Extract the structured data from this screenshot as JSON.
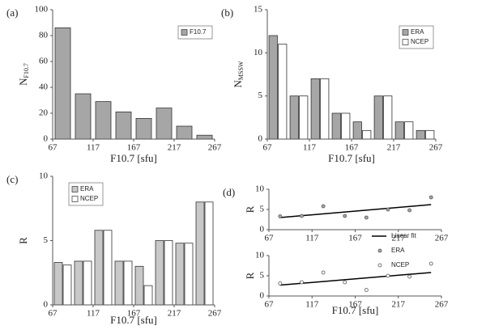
{
  "chart_data": [
    {
      "type": "histogram",
      "panel_label": "(a)",
      "ylabel": "N",
      "ylabel_sub": "F10.7",
      "xlabel": "F10.7 [sfu]",
      "bins": [
        67,
        92,
        117,
        142,
        167,
        192,
        217,
        242,
        267
      ],
      "series": [
        {
          "name": "F10.7",
          "color": "#a6a6a6",
          "values": [
            86,
            35,
            29,
            21,
            16,
            24,
            10,
            3
          ]
        }
      ],
      "xlim": [
        67,
        267
      ],
      "xticks": [
        67,
        117,
        167,
        217,
        267
      ],
      "ylim": [
        0,
        100
      ],
      "yticks": [
        0,
        20,
        40,
        60,
        80,
        100
      ],
      "legend": "upper right"
    },
    {
      "type": "histogram",
      "panel_label": "(b)",
      "ylabel": "N",
      "ylabel_sub": "MSSW",
      "xlabel": "F10.7 [sfu]",
      "bins": [
        67,
        92,
        117,
        142,
        167,
        192,
        217,
        242,
        267
      ],
      "series": [
        {
          "name": "ERA",
          "color": "#a6a6a6",
          "values": [
            12,
            5,
            7,
            3,
            2,
            5,
            2,
            1
          ]
        },
        {
          "name": "NCEP",
          "color": "#ffffff",
          "values": [
            11,
            5,
            7,
            3,
            1,
            5,
            2,
            1
          ]
        }
      ],
      "xlim": [
        67,
        267
      ],
      "xticks": [
        67,
        117,
        167,
        217,
        267
      ],
      "ylim": [
        0,
        15
      ],
      "yticks": [
        0,
        5,
        10,
        15
      ],
      "legend": "upper right"
    },
    {
      "type": "histogram",
      "panel_label": "(c)",
      "ylabel": "R",
      "xlabel": "F10.7 [sfu]",
      "bins": [
        67,
        92,
        117,
        142,
        167,
        192,
        217,
        242,
        267
      ],
      "series": [
        {
          "name": "ERA",
          "color": "#c8c8c8",
          "values": [
            3.3,
            3.4,
            5.8,
            3.4,
            3.0,
            5.0,
            4.8,
            8.0
          ]
        },
        {
          "name": "NCEP",
          "color": "#ffffff",
          "values": [
            3.1,
            3.4,
            5.8,
            3.4,
            1.5,
            5.0,
            4.8,
            8.0
          ]
        }
      ],
      "xlim": [
        67,
        267
      ],
      "xticks": [
        67,
        117,
        167,
        217,
        267
      ],
      "ylim": [
        0,
        10
      ],
      "yticks": [
        0,
        5,
        10
      ],
      "legend": "upper left"
    },
    {
      "type": "scatter",
      "panel_label": "(d)",
      "ylabel": "R",
      "x": [
        80,
        105,
        130,
        155,
        180,
        205,
        230,
        255
      ],
      "series": [
        {
          "name": "ERA",
          "color": "#a6a6a6",
          "values": [
            3.3,
            3.4,
            5.8,
            3.4,
            3.0,
            5.0,
            4.8,
            8.0
          ]
        }
      ],
      "fit": {
        "name": "Linear fit",
        "x": [
          80,
          255
        ],
        "values": [
          3.0,
          6.2
        ]
      },
      "xlim": [
        67,
        267
      ],
      "xticks": [
        67,
        117,
        167,
        217,
        267
      ],
      "ylim": [
        0,
        10
      ],
      "yticks": [
        0,
        5,
        10
      ],
      "legend": "lower right"
    },
    {
      "type": "scatter",
      "ylabel": "R",
      "xlabel": "F10.7 [sfu]",
      "x": [
        80,
        105,
        130,
        155,
        180,
        205,
        230,
        255
      ],
      "series": [
        {
          "name": "NCEP",
          "color": "#ffffff",
          "values": [
            3.1,
            3.4,
            5.8,
            3.4,
            1.5,
            5.0,
            4.8,
            8.0
          ]
        }
      ],
      "fit": {
        "x": [
          80,
          255
        ],
        "values": [
          2.7,
          5.8
        ]
      },
      "xlim": [
        67,
        267
      ],
      "xticks": [
        67,
        117,
        167,
        217,
        267
      ],
      "ylim": [
        0,
        10
      ],
      "yticks": [
        0,
        5,
        10
      ],
      "legend": "upper right"
    }
  ]
}
